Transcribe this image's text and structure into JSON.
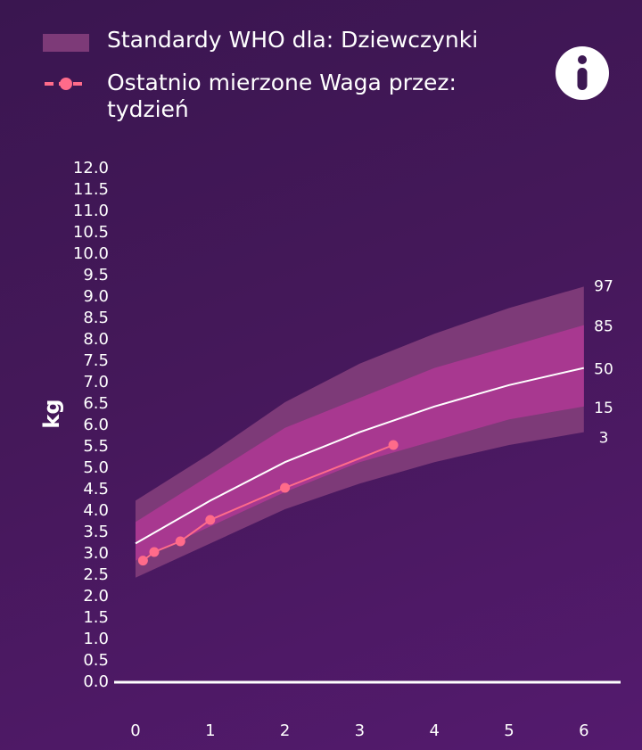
{
  "legend": {
    "band_label": "Standardy WHO dla: Dziewczynki",
    "series_label": "Ostatnio mierzone Waga przez: tydzień"
  },
  "info_button": {
    "icon": "info-icon"
  },
  "colors": {
    "outer_band": "#7d3a78",
    "mid_band": "#9b3488",
    "inner_band": "#b23d97",
    "median_line": "#ffffff",
    "series": "#ff6b8a",
    "axis": "#ffffff"
  },
  "chart_data": {
    "type": "line",
    "ylabel": "kg",
    "xlabel": "",
    "ylim": [
      0,
      12
    ],
    "xlim": [
      0,
      6
    ],
    "y_ticks": [
      "0.0",
      "0.5",
      "1.0",
      "1.5",
      "2.0",
      "2.5",
      "3.0",
      "3.5",
      "4.0",
      "4.5",
      "5.0",
      "5.5",
      "6.0",
      "6.5",
      "7.0",
      "7.5",
      "8.0",
      "8.5",
      "9.0",
      "9.5",
      "10.0",
      "10.5",
      "11.0",
      "11.5",
      "12.0"
    ],
    "x_ticks": [
      "0",
      "1",
      "2",
      "3",
      "4",
      "5",
      "6"
    ],
    "percentile_x": [
      0,
      1,
      2,
      3,
      4,
      5,
      6
    ],
    "percentiles": [
      {
        "label": "3",
        "values": [
          2.4,
          3.2,
          4.0,
          4.6,
          5.1,
          5.5,
          5.8
        ]
      },
      {
        "label": "15",
        "values": [
          2.8,
          3.6,
          4.4,
          5.1,
          5.6,
          6.1,
          6.4
        ]
      },
      {
        "label": "50",
        "values": [
          3.2,
          4.2,
          5.1,
          5.8,
          6.4,
          6.9,
          7.3
        ]
      },
      {
        "label": "85",
        "values": [
          3.7,
          4.8,
          5.9,
          6.6,
          7.3,
          7.8,
          8.3
        ]
      },
      {
        "label": "97",
        "values": [
          4.2,
          5.3,
          6.5,
          7.4,
          8.1,
          8.7,
          9.2
        ]
      }
    ],
    "series": [
      {
        "x": [
          0.1,
          0.25,
          0.6,
          1.0,
          2.0,
          3.45
        ],
        "values": [
          2.8,
          3.0,
          3.25,
          3.75,
          4.5,
          5.5
        ]
      }
    ]
  }
}
